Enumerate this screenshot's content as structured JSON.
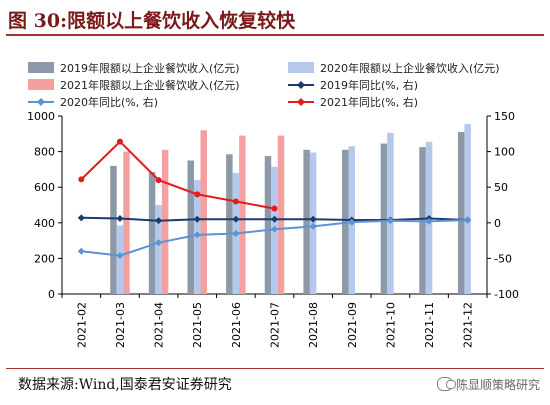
{
  "figure": {
    "title": "图 30:限额以上餐饮收入恢复较快",
    "source": "数据来源:Wind,国泰君安证券研究",
    "watermark": "陈显顺策略研究"
  },
  "chart_data": {
    "type": "bar",
    "categories": [
      "2021-02",
      "2021-03",
      "2021-04",
      "2021-05",
      "2021-06",
      "2021-07",
      "2021-08",
      "2021-09",
      "2021-10",
      "2021-11",
      "2021-12"
    ],
    "y_left": {
      "range": [
        0,
        1000
      ],
      "ticks": [
        0,
        200,
        400,
        600,
        800,
        1000
      ]
    },
    "y_right": {
      "range": [
        -100,
        150
      ],
      "ticks": [
        -100,
        -50,
        0,
        50,
        100,
        150
      ]
    },
    "legend_position": "top",
    "bar_series": [
      {
        "name": "2019年限额以上企业餐饮收入(亿元)",
        "color": "#8c99a8",
        "values": [
          null,
          720,
          685,
          750,
          785,
          775,
          810,
          810,
          845,
          825,
          910
        ]
      },
      {
        "name": "2020年限额以上企业餐饮收入(亿元)",
        "color": "#b4c9ec",
        "values": [
          null,
          385,
          500,
          640,
          680,
          715,
          795,
          830,
          905,
          855,
          955
        ]
      },
      {
        "name": "2021年限额以上企业餐饮收入(亿元)",
        "color": "#f4a0a0",
        "values": [
          null,
          800,
          810,
          920,
          890,
          890,
          null,
          null,
          null,
          null,
          null
        ]
      }
    ],
    "line_series": [
      {
        "name": "2019年同比(%, 右)",
        "color": "#1f3a6d",
        "values": [
          7,
          6,
          3,
          5,
          5,
          5,
          5,
          4,
          4,
          6,
          4
        ]
      },
      {
        "name": "2020年同比(%, 右)",
        "color": "#5b93d3",
        "values": [
          -40,
          -46,
          -28,
          -17,
          -15,
          -9,
          -5,
          1,
          3,
          2,
          4
        ]
      },
      {
        "name": "2021年同比(%, 右)",
        "color": "#e41a1c",
        "values": [
          61,
          114,
          60,
          40,
          30,
          20,
          null,
          null,
          null,
          null,
          null
        ]
      }
    ],
    "legend_order": [
      {
        "kind": "bar",
        "series": 0
      },
      {
        "kind": "bar",
        "series": 1
      },
      {
        "kind": "bar",
        "series": 2
      },
      {
        "kind": "line",
        "series": 0
      },
      {
        "kind": "line",
        "series": 1
      },
      {
        "kind": "line",
        "series": 2
      }
    ]
  }
}
